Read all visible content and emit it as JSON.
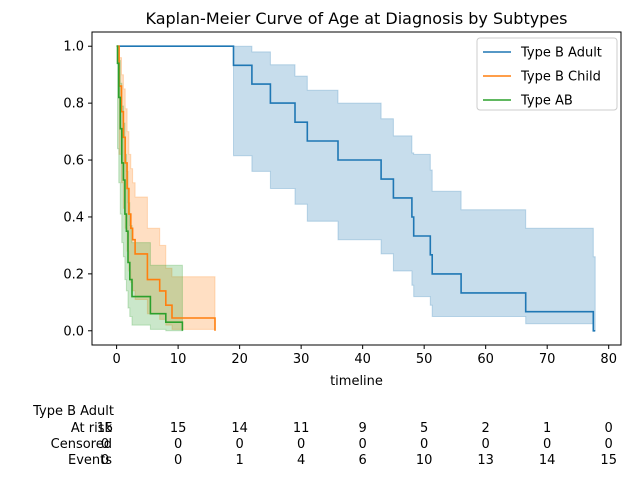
{
  "chart_data": {
    "type": "line",
    "title": "Kaplan-Meier Curve of Age at Diagnosis by Subtypes",
    "xlabel": "timeline",
    "ylabel": "",
    "xlim": [
      -4,
      82
    ],
    "ylim": [
      -0.05,
      1.05
    ],
    "xticks": [
      0,
      10,
      20,
      30,
      40,
      50,
      60,
      70,
      80
    ],
    "yticks": [
      0.0,
      0.2,
      0.4,
      0.6,
      0.8,
      1.0
    ],
    "legend": "top-right",
    "series": [
      {
        "name": "Type B Adult",
        "color": "#1f77b4",
        "x": [
          0,
          19,
          22,
          25,
          29,
          31,
          36,
          43,
          45,
          48,
          48.3,
          51,
          51.3,
          56,
          66.5,
          77.5
        ],
        "y": [
          1.0,
          0.933,
          0.867,
          0.8,
          0.733,
          0.667,
          0.6,
          0.533,
          0.467,
          0.4,
          0.333,
          0.267,
          0.2,
          0.133,
          0.067,
          0.0
        ],
        "ci_upper": [
          1.0,
          1.0,
          0.98,
          0.935,
          0.895,
          0.845,
          0.8,
          0.745,
          0.685,
          0.625,
          0.62,
          0.565,
          0.49,
          0.425,
          0.36,
          0.26
        ],
        "ci_lower": [
          1.0,
          0.615,
          0.56,
          0.5,
          0.445,
          0.385,
          0.32,
          0.27,
          0.21,
          0.16,
          0.12,
          0.09,
          0.05,
          0.05,
          0.025,
          0.0
        ],
        "end_x": 77.8
      },
      {
        "name": "Type B Child",
        "color": "#ff7f0e",
        "x": [
          0,
          0.4,
          0.8,
          1.1,
          1.4,
          1.7,
          2.0,
          2.3,
          2.6,
          3.0,
          5.0,
          7.0,
          8.0,
          9.0,
          16.0
        ],
        "y": [
          1.0,
          0.86,
          0.77,
          0.68,
          0.59,
          0.5,
          0.41,
          0.36,
          0.32,
          0.27,
          0.18,
          0.14,
          0.09,
          0.045,
          0.0
        ],
        "ci_upper": [
          1.0,
          0.96,
          0.9,
          0.85,
          0.78,
          0.7,
          0.62,
          0.57,
          0.52,
          0.47,
          0.36,
          0.3,
          0.22,
          0.19,
          0.19
        ],
        "ci_lower": [
          1.0,
          0.62,
          0.52,
          0.43,
          0.36,
          0.28,
          0.21,
          0.17,
          0.14,
          0.11,
          0.06,
          0.04,
          0.02,
          0.005,
          0.0
        ],
        "end_x": 16.0
      },
      {
        "name": "Type AB",
        "color": "#2ca02c",
        "x": [
          0,
          0.15,
          0.35,
          0.6,
          0.85,
          1.1,
          1.35,
          1.6,
          1.85,
          2.15,
          2.5,
          5.5,
          8.0,
          10.7
        ],
        "y": [
          1.0,
          0.94,
          0.82,
          0.71,
          0.59,
          0.53,
          0.41,
          0.35,
          0.24,
          0.18,
          0.12,
          0.06,
          0.03,
          0.0
        ],
        "ci_upper": [
          1.0,
          1.0,
          0.95,
          0.87,
          0.79,
          0.73,
          0.62,
          0.56,
          0.45,
          0.37,
          0.31,
          0.23,
          0.23,
          0.23
        ],
        "ci_lower": [
          1.0,
          0.64,
          0.52,
          0.41,
          0.31,
          0.26,
          0.18,
          0.14,
          0.08,
          0.05,
          0.02,
          0.005,
          0.0,
          0.0
        ],
        "end_x": 10.7
      }
    ],
    "at_risk_table": {
      "group": "Type B Adult",
      "rows": [
        {
          "label": "At risk",
          "values": [
            15,
            15,
            14,
            11,
            9,
            5,
            2,
            1,
            0
          ]
        },
        {
          "label": "Censored",
          "values": [
            0,
            0,
            0,
            0,
            0,
            0,
            0,
            0,
            0
          ]
        },
        {
          "label": "Events",
          "values": [
            0,
            0,
            1,
            4,
            6,
            10,
            13,
            14,
            15
          ]
        }
      ]
    }
  }
}
